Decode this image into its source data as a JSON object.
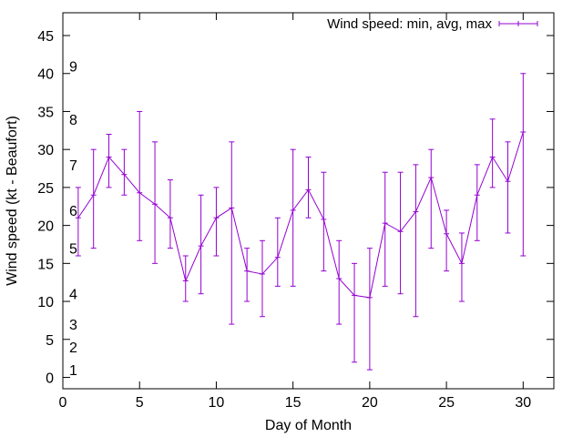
{
  "chart_data": {
    "type": "line",
    "title": "",
    "xlabel": "Day of Month",
    "ylabel": "Wind speed (kt - Beaufort)",
    "xlim": [
      0,
      32
    ],
    "ylim": [
      -1.5,
      48
    ],
    "x_ticks": [
      0,
      5,
      10,
      15,
      20,
      25,
      30
    ],
    "y_ticks": [
      0,
      5,
      10,
      15,
      20,
      25,
      30,
      35,
      40,
      45
    ],
    "grid": false,
    "legend_position": "top-right",
    "series": [
      {
        "name": "Wind speed: min, avg, max",
        "color": "#9400d3",
        "x": [
          1,
          2,
          3,
          4,
          5,
          6,
          7,
          8,
          9,
          10,
          11,
          12,
          13,
          14,
          15,
          16,
          17,
          18,
          19,
          20,
          21,
          22,
          23,
          24,
          25,
          26,
          27,
          28,
          29,
          30
        ],
        "avg": [
          21,
          24,
          29,
          26.7,
          24.3,
          22.8,
          21,
          12.7,
          17.3,
          21,
          22.3,
          14,
          13.6,
          15.8,
          22,
          24.7,
          20.8,
          13,
          10.8,
          10.5,
          20.3,
          19.2,
          21.8,
          26.3,
          18.9,
          15,
          24,
          29,
          25.8,
          32.3
        ],
        "min": [
          16,
          17,
          25,
          24,
          18,
          15,
          17,
          10,
          11,
          16,
          7,
          10,
          8,
          12,
          12,
          21,
          14,
          7,
          2,
          1,
          12,
          11,
          8,
          17,
          14,
          10,
          18,
          25,
          19,
          16
        ],
        "max": [
          25,
          30,
          32,
          30,
          35,
          31,
          26,
          16,
          24,
          25,
          31,
          17,
          18,
          21,
          30,
          29,
          27,
          18,
          15,
          17,
          27,
          27,
          28,
          30,
          22,
          19,
          28,
          34,
          31,
          40
        ]
      }
    ],
    "beaufort_scale": [
      {
        "label": "1",
        "y": 1
      },
      {
        "label": "2",
        "y": 4
      },
      {
        "label": "3",
        "y": 7
      },
      {
        "label": "4",
        "y": 11
      },
      {
        "label": "5",
        "y": 17
      },
      {
        "label": "6",
        "y": 22
      },
      {
        "label": "7",
        "y": 28
      },
      {
        "label": "8",
        "y": 34
      },
      {
        "label": "9",
        "y": 41
      }
    ]
  }
}
